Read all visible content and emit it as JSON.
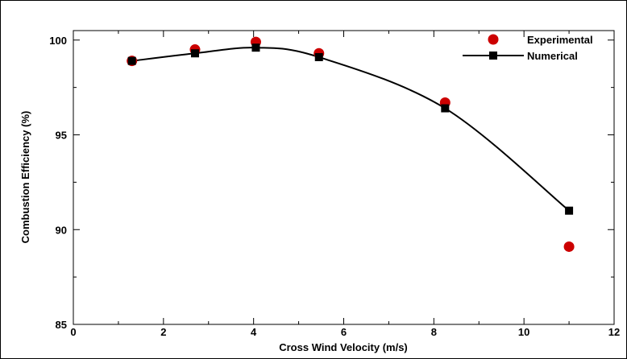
{
  "chart_data": {
    "type": "scatter",
    "xlabel": "Cross Wind Velocity (m/s)",
    "ylabel": "Combustion Efficiency (%)",
    "xlim": [
      0,
      12
    ],
    "ylim": [
      85,
      100.5
    ],
    "x_ticks": [
      0,
      2,
      4,
      6,
      8,
      10,
      12
    ],
    "y_ticks": [
      85,
      90,
      95,
      100
    ],
    "grid": false,
    "legend_position": "top-right",
    "series": [
      {
        "name": "Experimental",
        "marker": "circle",
        "color": "#cc0000",
        "x": [
          1.3,
          2.7,
          4.05,
          5.45,
          8.25,
          11.0
        ],
        "y": [
          98.9,
          99.5,
          99.9,
          99.3,
          96.7,
          89.1
        ]
      },
      {
        "name": "Numerical",
        "marker": "square",
        "line": "smooth",
        "color": "#000000",
        "x": [
          1.3,
          2.7,
          4.05,
          5.45,
          8.25,
          11.0
        ],
        "y": [
          98.9,
          99.3,
          99.6,
          99.1,
          96.4,
          91.0
        ]
      }
    ]
  }
}
